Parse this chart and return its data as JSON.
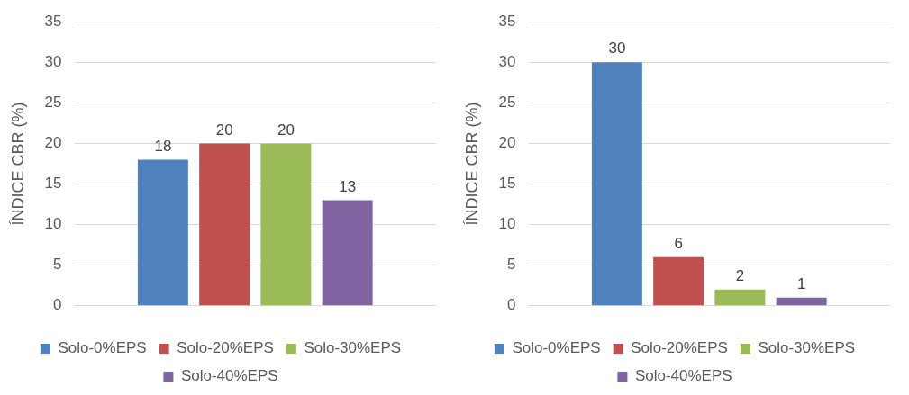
{
  "chart_data": [
    {
      "type": "bar",
      "ylabel": "ÍNDICE CBR (%)",
      "categories": [
        null
      ],
      "ylim": [
        0,
        35
      ],
      "yticks": [
        0,
        5,
        10,
        15,
        20,
        25,
        30,
        35
      ],
      "grid": "y",
      "legend": "bottom",
      "data_labels": true,
      "series": [
        {
          "name": "Solo-0%EPS",
          "color": "#4f81bd",
          "values": [
            18
          ]
        },
        {
          "name": "Solo-20%EPS",
          "color": "#c0504d",
          "values": [
            20
          ]
        },
        {
          "name": "Solo-30%EPS",
          "color": "#9bbb59",
          "values": [
            20
          ]
        },
        {
          "name": "Solo-40%EPS",
          "color": "#8064a2",
          "values": [
            13
          ]
        }
      ]
    },
    {
      "type": "bar",
      "ylabel": "ÍNDICE CBR (%)",
      "categories": [
        null
      ],
      "ylim": [
        0,
        35
      ],
      "yticks": [
        0,
        5,
        10,
        15,
        20,
        25,
        30,
        35
      ],
      "grid": "y",
      "legend": "bottom",
      "data_labels": true,
      "series": [
        {
          "name": "Solo-0%EPS",
          "color": "#4f81bd",
          "values": [
            30
          ]
        },
        {
          "name": "Solo-20%EPS",
          "color": "#c0504d",
          "values": [
            6
          ]
        },
        {
          "name": "Solo-30%EPS",
          "color": "#9bbb59",
          "values": [
            2
          ]
        },
        {
          "name": "Solo-40%EPS",
          "color": "#8064a2",
          "values": [
            1
          ]
        }
      ]
    }
  ]
}
